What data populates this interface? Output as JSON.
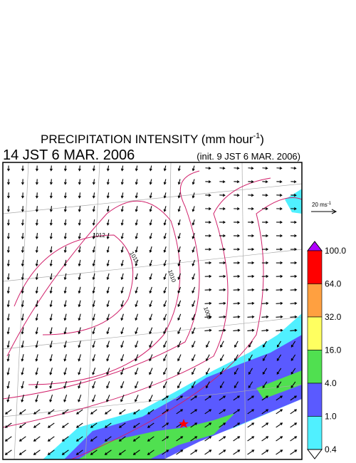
{
  "title": {
    "text": "PRECIPITATION INTENSITY (mm hour",
    "exponent": "-1",
    "suffix": ")"
  },
  "valid_time": "14 JST 6 MAR. 2006",
  "init_time": "(init. 9 JST 6 MAR. 2006)",
  "vector_key": {
    "text": "20 ms",
    "exponent": "-1"
  },
  "colorbar": {
    "labels": [
      "100.0",
      "64.0",
      "32.0",
      "16.0",
      "4.0",
      "1.0",
      "0.4"
    ],
    "colors": [
      "#b000ff",
      "#ff0000",
      "#ffa040",
      "#ffff60",
      "#50e050",
      "#5a5aff",
      "#50f0ff",
      "#ffffff"
    ]
  },
  "isobar_labels": [
    "1012",
    "1011",
    "1010",
    "1009"
  ]
}
